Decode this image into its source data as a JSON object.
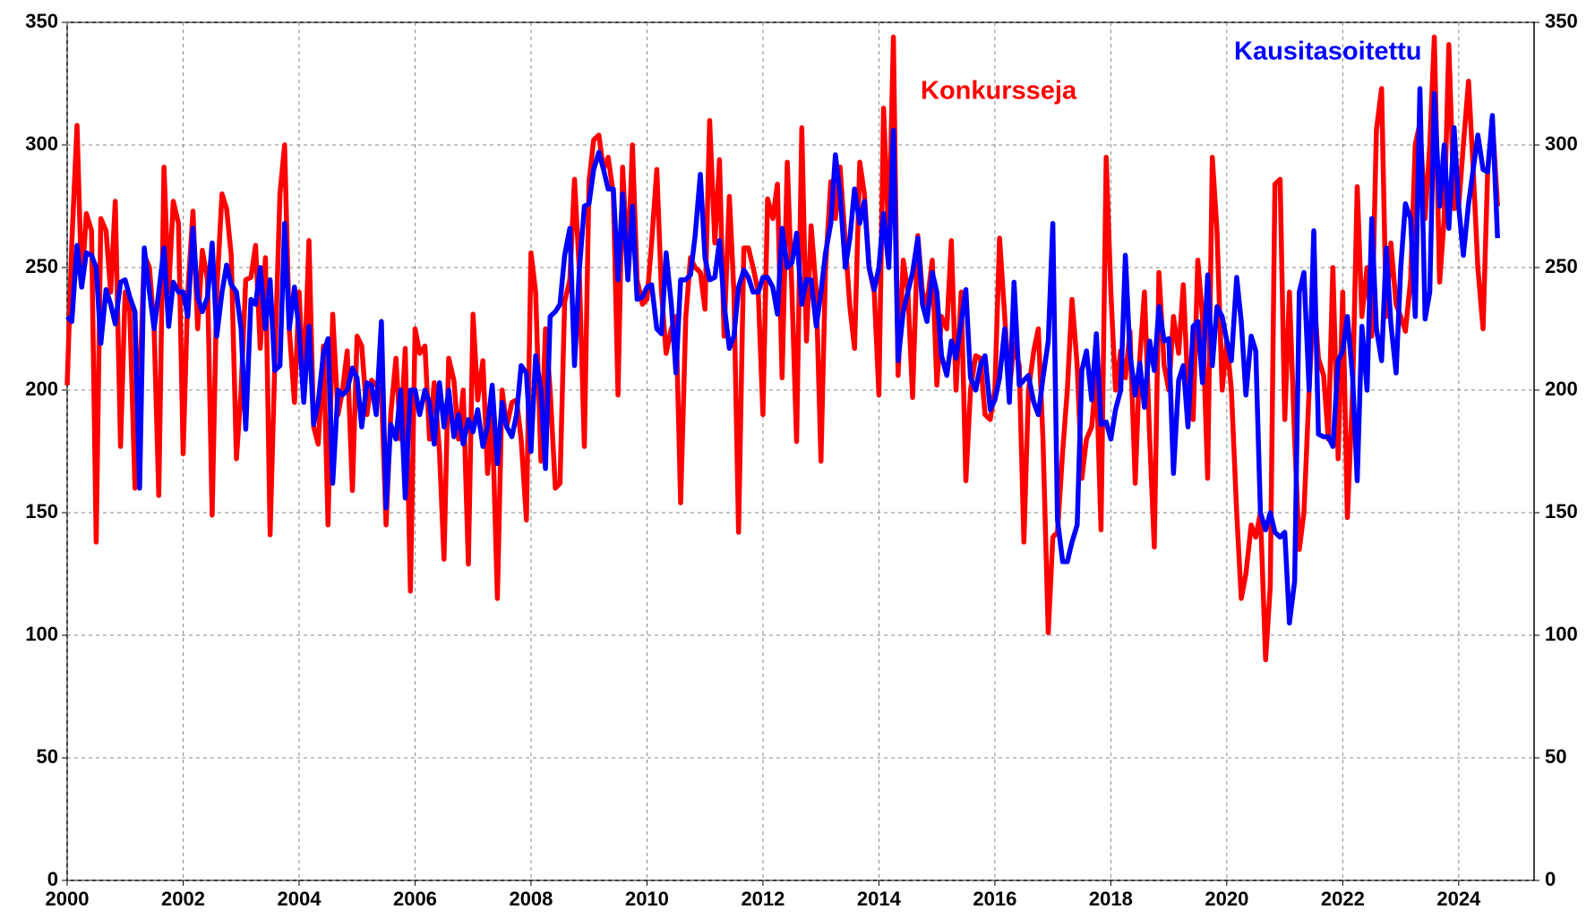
{
  "chart_data": {
    "type": "line",
    "x": [
      2000.0,
      2000.08,
      2000.17,
      2000.25,
      2000.33,
      2000.42,
      2000.5,
      2000.58,
      2000.67,
      2000.75,
      2000.83,
      2000.92,
      2001.0,
      2001.08,
      2001.17,
      2001.25,
      2001.33,
      2001.42,
      2001.5,
      2001.58,
      2001.67,
      2001.75,
      2001.83,
      2001.92,
      2002.0,
      2002.08,
      2002.17,
      2002.25,
      2002.33,
      2002.42,
      2002.5,
      2002.58,
      2002.67,
      2002.75,
      2002.83,
      2002.92,
      2003.0,
      2003.08,
      2003.17,
      2003.25,
      2003.33,
      2003.42,
      2003.5,
      2003.58,
      2003.67,
      2003.75,
      2003.83,
      2003.92,
      2004.0,
      2004.08,
      2004.17,
      2004.25,
      2004.33,
      2004.42,
      2004.5,
      2004.58,
      2004.67,
      2004.75,
      2004.83,
      2004.92,
      2005.0,
      2005.08,
      2005.17,
      2005.25,
      2005.33,
      2005.42,
      2005.5,
      2005.58,
      2005.67,
      2005.75,
      2005.83,
      2005.92,
      2006.0,
      2006.08,
      2006.17,
      2006.25,
      2006.33,
      2006.42,
      2006.5,
      2006.58,
      2006.67,
      2006.75,
      2006.83,
      2006.92,
      2007.0,
      2007.08,
      2007.17,
      2007.25,
      2007.33,
      2007.42,
      2007.5,
      2007.58,
      2007.67,
      2007.75,
      2007.83,
      2007.92,
      2008.0,
      2008.08,
      2008.17,
      2008.25,
      2008.33,
      2008.42,
      2008.5,
      2008.58,
      2008.67,
      2008.75,
      2008.83,
      2008.92,
      2009.0,
      2009.08,
      2009.17,
      2009.25,
      2009.33,
      2009.42,
      2009.5,
      2009.58,
      2009.67,
      2009.75,
      2009.83,
      2009.92,
      2010.0,
      2010.08,
      2010.17,
      2010.25,
      2010.33,
      2010.42,
      2010.5,
      2010.58,
      2010.67,
      2010.75,
      2010.83,
      2010.92,
      2011.0,
      2011.08,
      2011.17,
      2011.25,
      2011.33,
      2011.42,
      2011.5,
      2011.58,
      2011.67,
      2011.75,
      2011.83,
      2011.92,
      2012.0,
      2012.08,
      2012.17,
      2012.25,
      2012.33,
      2012.42,
      2012.5,
      2012.58,
      2012.67,
      2012.75,
      2012.83,
      2012.92,
      2013.0,
      2013.08,
      2013.17,
      2013.25,
      2013.33,
      2013.42,
      2013.5,
      2013.58,
      2013.67,
      2013.75,
      2013.83,
      2013.92,
      2014.0,
      2014.08,
      2014.17,
      2014.25,
      2014.33,
      2014.42,
      2014.5,
      2014.58,
      2014.67,
      2014.75,
      2014.83,
      2014.92,
      2015.0,
      2015.08,
      2015.17,
      2015.25,
      2015.33,
      2015.42,
      2015.5,
      2015.58,
      2015.67,
      2015.75,
      2015.83,
      2015.92,
      2016.0,
      2016.08,
      2016.17,
      2016.25,
      2016.33,
      2016.42,
      2016.5,
      2016.58,
      2016.67,
      2016.75,
      2016.83,
      2016.92,
      2017.0,
      2017.08,
      2017.17,
      2017.25,
      2017.33,
      2017.42,
      2017.5,
      2017.58,
      2017.67,
      2017.75,
      2017.83,
      2017.92,
      2018.0,
      2018.08,
      2018.17,
      2018.25,
      2018.33,
      2018.42,
      2018.5,
      2018.58,
      2018.67,
      2018.75,
      2018.83,
      2018.92,
      2019.0,
      2019.08,
      2019.17,
      2019.25,
      2019.33,
      2019.42,
      2019.5,
      2019.58,
      2019.67,
      2019.75,
      2019.83,
      2019.92,
      2020.0,
      2020.08,
      2020.17,
      2020.25,
      2020.33,
      2020.42,
      2020.5,
      2020.58,
      2020.67,
      2020.75,
      2020.83,
      2020.92,
      2021.0,
      2021.08,
      2021.17,
      2021.25,
      2021.33,
      2021.42,
      2021.5,
      2021.58,
      2021.67,
      2021.75,
      2021.83,
      2021.92,
      2022.0,
      2022.08,
      2022.17,
      2022.25,
      2022.33,
      2022.42,
      2022.5,
      2022.58,
      2022.67,
      2022.75,
      2022.83,
      2022.92,
      2023.0,
      2023.08,
      2023.17,
      2023.25,
      2023.33,
      2023.42,
      2023.5,
      2023.58,
      2023.67,
      2023.75,
      2023.83,
      2023.92,
      2024.0,
      2024.08,
      2024.17,
      2024.25,
      2024.33,
      2024.42,
      2024.5,
      2024.58,
      2024.67
    ],
    "series": [
      {
        "name": "Konkursseja",
        "color": "#ff0000",
        "values": [
          202,
          260,
          308,
          242,
          272,
          265,
          138,
          270,
          265,
          240,
          277,
          177,
          240,
          232,
          160,
          200,
          255,
          250,
          225,
          157,
          291,
          240,
          277,
          268,
          174,
          240,
          273,
          225,
          257,
          245,
          149,
          240,
          280,
          274,
          255,
          172,
          200,
          245,
          246,
          259,
          217,
          254,
          141,
          210,
          280,
          300,
          225,
          195,
          240,
          200,
          261,
          185,
          178,
          218,
          145,
          231,
          190,
          200,
          216,
          159,
          222,
          218,
          190,
          204,
          202,
          200,
          145,
          190,
          213,
          180,
          217,
          118,
          225,
          215,
          218,
          180,
          203,
          175,
          131,
          213,
          204,
          180,
          200,
          129,
          231,
          196,
          212,
          166,
          190,
          115,
          200,
          185,
          195,
          196,
          180,
          147,
          256,
          240,
          171,
          225,
          200,
          160,
          162,
          236,
          245,
          286,
          250,
          177,
          285,
          302,
          304,
          290,
          295,
          280,
          198,
          291,
          250,
          300,
          245,
          235,
          237,
          260,
          290,
          240,
          215,
          225,
          230,
          154,
          230,
          254,
          250,
          248,
          233,
          310,
          260,
          294,
          222,
          279,
          240,
          142,
          258,
          258,
          250,
          240,
          190,
          278,
          270,
          284,
          205,
          293,
          240,
          179,
          307,
          220,
          267,
          240,
          171,
          250,
          285,
          270,
          291,
          260,
          234,
          217,
          293,
          280,
          250,
          240,
          198,
          315,
          260,
          344,
          206,
          253,
          240,
          197,
          263,
          240,
          235,
          253,
          202,
          230,
          225,
          261,
          200,
          240,
          163,
          200,
          214,
          213,
          190,
          188,
          200,
          262,
          230,
          200,
          219,
          210,
          138,
          200,
          216,
          225,
          180,
          101,
          140,
          142,
          175,
          200,
          237,
          210,
          164,
          180,
          185,
          207,
          143,
          295,
          240,
          200,
          216,
          205,
          224,
          162,
          213,
          240,
          180,
          136,
          248,
          210,
          200,
          230,
          215,
          243,
          200,
          188,
          253,
          230,
          164,
          295,
          265,
          200,
          220,
          200,
          150,
          115,
          125,
          145,
          140,
          150,
          90,
          120,
          284,
          286,
          188,
          240,
          180,
          135,
          150,
          200,
          240,
          213,
          206,
          180,
          250,
          172,
          240,
          148,
          200,
          283,
          230,
          250,
          222,
          306,
          323,
          230,
          260,
          235,
          230,
          224,
          245,
          300,
          309,
          270,
          300,
          344,
          244,
          270,
          341,
          274,
          275,
          300,
          326,
          290,
          250,
          225,
          290,
          310,
          275
        ]
      },
      {
        "name": "Kausitasoitettu",
        "color": "#0000ff",
        "values": [
          230,
          228,
          259,
          242,
          256,
          255,
          250,
          219,
          241,
          235,
          227,
          244,
          245,
          238,
          232,
          160,
          258,
          240,
          225,
          240,
          258,
          226,
          244,
          240,
          240,
          230,
          266,
          238,
          232,
          238,
          260,
          222,
          240,
          251,
          243,
          240,
          225,
          184,
          237,
          235,
          250,
          225,
          245,
          208,
          210,
          268,
          225,
          242,
          224,
          195,
          226,
          186,
          195,
          215,
          221,
          162,
          200,
          198,
          200,
          209,
          205,
          185,
          203,
          202,
          190,
          228,
          152,
          186,
          180,
          200,
          156,
          200,
          200,
          190,
          200,
          195,
          178,
          203,
          185,
          200,
          181,
          190,
          178,
          188,
          183,
          192,
          177,
          185,
          202,
          170,
          195,
          185,
          181,
          190,
          210,
          207,
          175,
          214,
          200,
          168,
          230,
          232,
          235,
          255,
          266,
          210,
          248,
          275,
          276,
          290,
          297,
          290,
          282,
          282,
          245,
          280,
          245,
          275,
          237,
          238,
          242,
          243,
          225,
          223,
          256,
          235,
          207,
          245,
          245,
          247,
          263,
          288,
          254,
          245,
          246,
          261,
          235,
          217,
          222,
          242,
          249,
          246,
          240,
          240,
          246,
          246,
          242,
          231,
          266,
          250,
          252,
          264,
          235,
          245,
          245,
          226,
          240,
          256,
          268,
          296,
          280,
          250,
          262,
          282,
          268,
          277,
          250,
          241,
          250,
          272,
          250,
          306,
          212,
          232,
          240,
          248,
          262,
          235,
          228,
          248,
          240,
          214,
          206,
          220,
          213,
          228,
          241,
          205,
          200,
          210,
          214,
          192,
          196,
          205,
          225,
          195,
          244,
          202,
          204,
          206,
          195,
          190,
          205,
          220,
          268,
          147,
          130,
          130,
          138,
          145,
          208,
          216,
          196,
          223,
          186,
          187,
          180,
          192,
          200,
          255,
          215,
          198,
          211,
          193,
          220,
          208,
          234,
          220,
          221,
          166,
          204,
          210,
          185,
          226,
          228,
          203,
          247,
          210,
          234,
          230,
          220,
          212,
          246,
          228,
          198,
          222,
          216,
          150,
          143,
          150,
          142,
          140,
          142,
          105,
          122,
          240,
          248,
          200,
          265,
          182,
          181,
          181,
          177,
          212,
          216,
          230,
          205,
          163,
          226,
          200,
          270,
          225,
          212,
          258,
          227,
          207,
          250,
          276,
          270,
          230,
          323,
          229,
          240,
          321,
          275,
          300,
          266,
          307,
          275,
          255,
          276,
          290,
          304,
          290,
          289,
          312,
          262
        ]
      }
    ],
    "xlim": [
      2000,
      2025.3
    ],
    "xticks": [
      2000,
      2002,
      2004,
      2006,
      2008,
      2010,
      2012,
      2014,
      2016,
      2018,
      2020,
      2022,
      2024
    ],
    "ylim": [
      0,
      350
    ],
    "yticks": [
      0,
      50,
      100,
      150,
      200,
      250,
      300,
      350
    ],
    "y2lim": [
      0,
      350
    ],
    "y2ticks": [
      0,
      50,
      100,
      150,
      200,
      250,
      300,
      350
    ],
    "grid": true
  }
}
